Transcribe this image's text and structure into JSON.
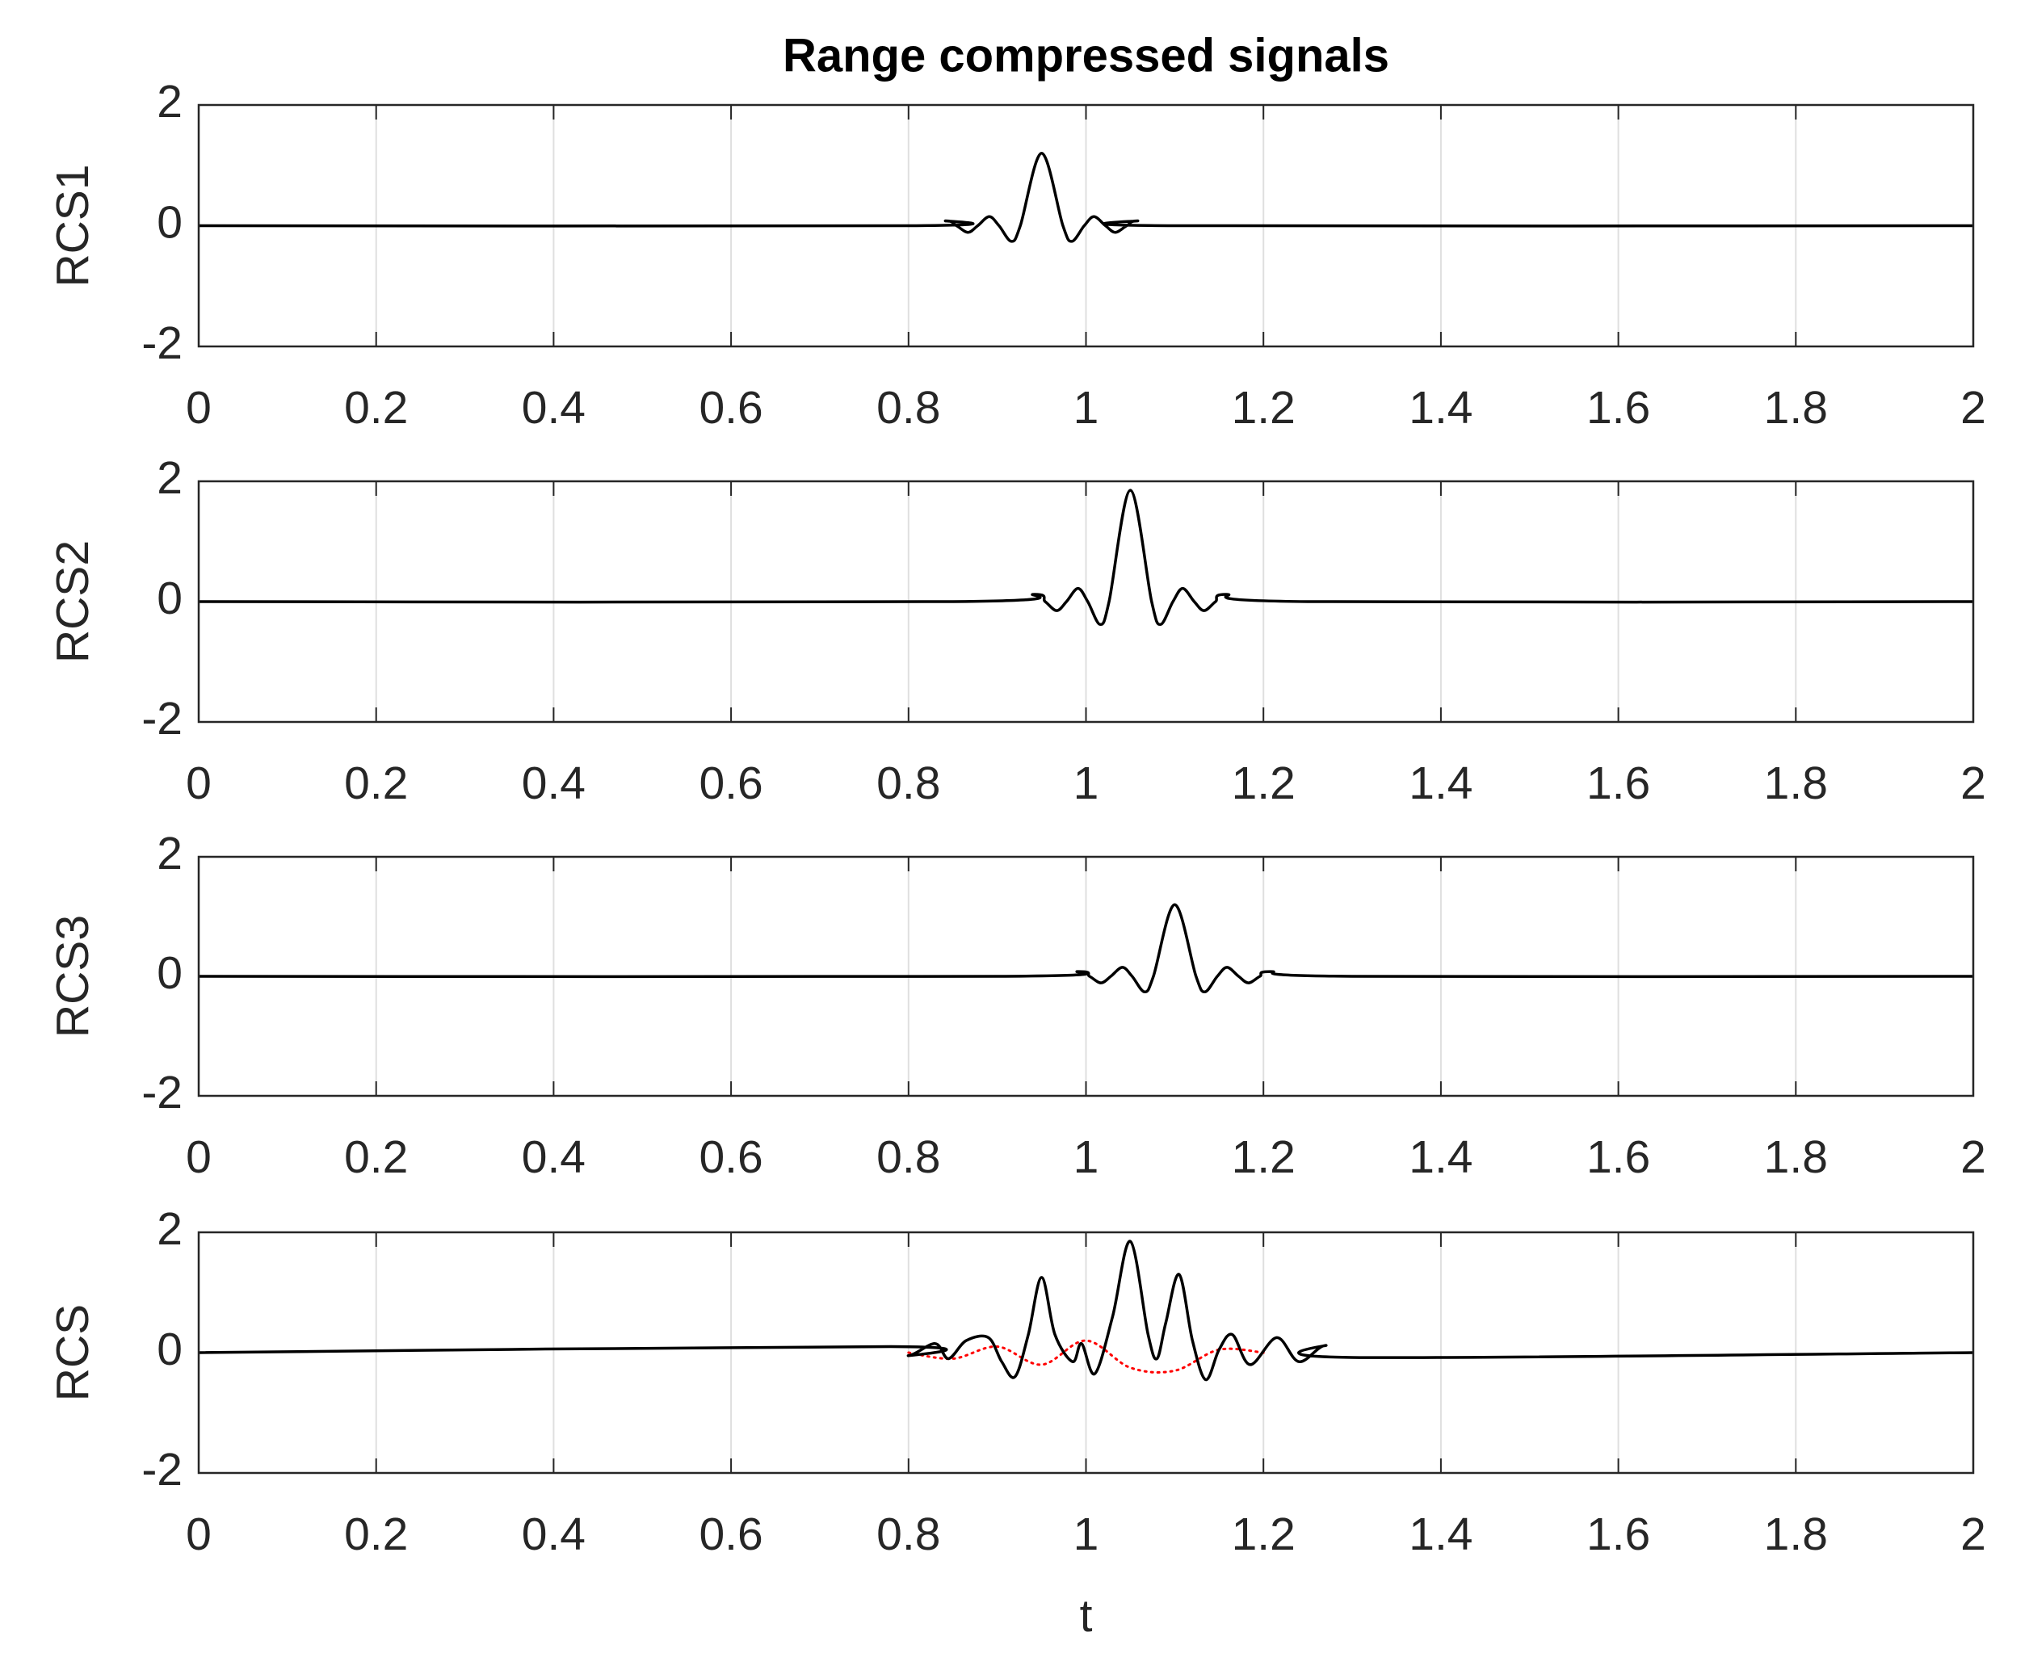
{
  "chart_data": [
    {
      "type": "line",
      "title": "Range compressed signals",
      "ylabel": "RCS1",
      "xlim": [
        0,
        2
      ],
      "xticks": [
        0,
        0.2,
        0.4,
        0.6,
        0.8,
        1,
        1.2,
        1.4,
        1.6,
        1.8,
        2
      ],
      "ylim": [
        -2,
        2
      ],
      "yticks": [
        -2,
        0,
        2
      ],
      "xgrid": true,
      "series": [
        {
          "color": "#000000",
          "style": "solid",
          "x": [
            0,
            0.8,
            0.842,
            0.854,
            0.867,
            0.878,
            0.891,
            0.902,
            0.916,
            0.926,
            0.95,
            0.974,
            0.984,
            0.998,
            1.009,
            1.022,
            1.033,
            1.046,
            1.058,
            1.1,
            2
          ],
          "values": [
            0,
            0,
            0.08,
            0,
            -0.11,
            0,
            0.15,
            0,
            -0.26,
            0,
            1.2,
            0,
            -0.26,
            0,
            0.15,
            0,
            -0.11,
            0,
            0.08,
            0,
            0
          ]
        }
      ]
    },
    {
      "type": "line",
      "ylabel": "RCS2",
      "xlim": [
        0,
        2
      ],
      "xticks": [
        0,
        0.2,
        0.4,
        0.6,
        0.8,
        1,
        1.2,
        1.4,
        1.6,
        1.8,
        2
      ],
      "ylim": [
        -2,
        2
      ],
      "yticks": [
        -2,
        0,
        2
      ],
      "xgrid": true,
      "series": [
        {
          "color": "#000000",
          "style": "solid",
          "x": [
            0,
            0.85,
            0.942,
            0.954,
            0.967,
            0.978,
            0.991,
            1.002,
            1.016,
            1.026,
            1.05,
            1.074,
            1.084,
            1.098,
            1.109,
            1.122,
            1.133,
            1.146,
            1.158,
            1.25,
            2
          ],
          "values": [
            0,
            0,
            0.12,
            0,
            -0.15,
            0,
            0.22,
            0,
            -0.38,
            0,
            1.85,
            0,
            -0.38,
            0,
            0.22,
            0,
            -0.15,
            0,
            0.12,
            0,
            0
          ]
        }
      ]
    },
    {
      "type": "line",
      "ylabel": "RCS3",
      "xlim": [
        0,
        2
      ],
      "xticks": [
        0,
        0.2,
        0.4,
        0.6,
        0.8,
        1,
        1.2,
        1.4,
        1.6,
        1.8,
        2
      ],
      "ylim": [
        -2,
        2
      ],
      "yticks": [
        -2,
        0,
        2
      ],
      "xgrid": true,
      "series": [
        {
          "color": "#000000",
          "style": "solid",
          "x": [
            0,
            0.9,
            0.992,
            1.004,
            1.017,
            1.028,
            1.041,
            1.052,
            1.066,
            1.076,
            1.1,
            1.124,
            1.134,
            1.148,
            1.159,
            1.172,
            1.183,
            1.196,
            1.208,
            1.3,
            2
          ],
          "values": [
            0,
            0,
            0.08,
            0,
            -0.11,
            0,
            0.15,
            0,
            -0.26,
            0,
            1.2,
            0,
            -0.26,
            0,
            0.15,
            0,
            -0.11,
            0,
            0.08,
            0,
            0
          ]
        }
      ]
    },
    {
      "type": "line",
      "ylabel": "RCS",
      "xlabel": "t",
      "xlim": [
        0,
        2
      ],
      "xticks": [
        0,
        0.2,
        0.4,
        0.6,
        0.8,
        1,
        1.2,
        1.4,
        1.6,
        1.8,
        2
      ],
      "ylim": [
        -2,
        2
      ],
      "yticks": [
        -2,
        0,
        2
      ],
      "xgrid": true,
      "series": [
        {
          "color": "#ff0000",
          "style": "dotted",
          "x": [
            0.8,
            0.85,
            0.9,
            0.95,
            1.0,
            1.05,
            1.1,
            1.15,
            1.2
          ],
          "values": [
            0,
            -0.1,
            0.1,
            -0.2,
            0.2,
            -0.25,
            -0.3,
            0.05,
            0
          ]
        },
        {
          "color": "#000000",
          "style": "solid",
          "x": [
            0,
            0.78,
            0.8,
            0.83,
            0.845,
            0.865,
            0.89,
            0.905,
            0.92,
            0.935,
            0.95,
            0.965,
            0.985,
            0.995,
            1.01,
            1.03,
            1.05,
            1.07,
            1.08,
            1.09,
            1.105,
            1.12,
            1.135,
            1.15,
            1.165,
            1.185,
            1.215,
            1.24,
            1.27,
            1.3,
            2
          ],
          "values": [
            0,
            0.1,
            -0.05,
            0.15,
            -0.1,
            0.2,
            0.25,
            -0.15,
            -0.4,
            0.3,
            1.25,
            0.3,
            -0.15,
            0.15,
            -0.35,
            0.6,
            1.85,
            0.3,
            -0.1,
            0.5,
            1.3,
            0.2,
            -0.45,
            0.05,
            0.3,
            -0.2,
            0.25,
            -0.15,
            0.12,
            -0.08,
            0
          ]
        }
      ]
    }
  ]
}
